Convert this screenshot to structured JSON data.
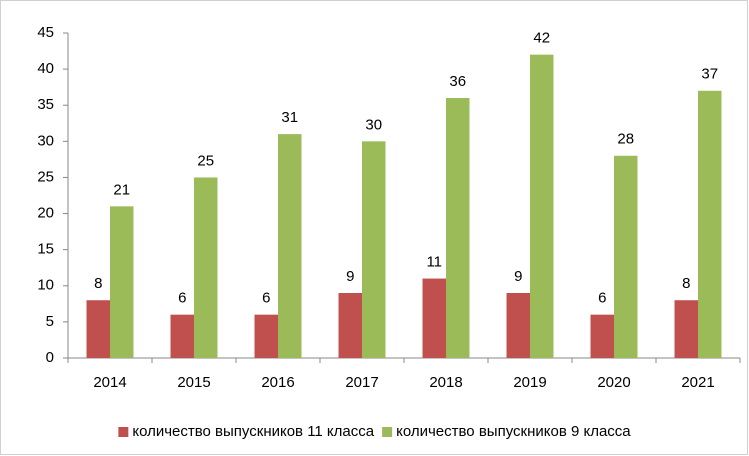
{
  "chart_data": {
    "type": "bar",
    "categories": [
      "2014",
      "2015",
      "2016",
      "2017",
      "2018",
      "2019",
      "2020",
      "2021"
    ],
    "series": [
      {
        "name": "количество выпускников 11 класса",
        "color": "#c0504d",
        "values": [
          8,
          6,
          6,
          9,
          11,
          9,
          6,
          8
        ]
      },
      {
        "name": "количество выпускников 9 класса",
        "color": "#9bbb59",
        "values": [
          21,
          25,
          31,
          30,
          36,
          42,
          28,
          37
        ]
      }
    ],
    "ylim": [
      0,
      45
    ],
    "yticks": [
      0,
      5,
      10,
      15,
      20,
      25,
      30,
      35,
      40,
      45
    ],
    "grid": false,
    "legend": "bottom",
    "data_labels": true
  }
}
